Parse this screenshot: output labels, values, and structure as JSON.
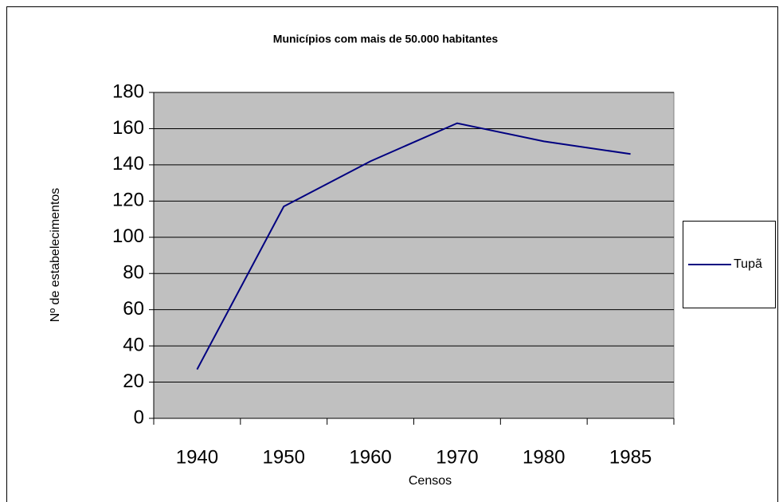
{
  "chart_data": {
    "type": "line",
    "title": "Municípios com mais de 50.000 habitantes",
    "x_label": "Censos",
    "y_label": "Nº de estabelecimentos",
    "categories": [
      "1940",
      "1950",
      "1960",
      "1970",
      "1980",
      "1985"
    ],
    "series": [
      {
        "name": "Tupã",
        "color": "#000080",
        "values": [
          27,
          117,
          142,
          163,
          153,
          146
        ]
      }
    ],
    "ylim": [
      0,
      180
    ],
    "yticks": [
      0,
      20,
      40,
      60,
      80,
      100,
      120,
      140,
      160,
      180
    ],
    "grid": true,
    "legend": "right",
    "plot_background": "#c0c0c0"
  }
}
